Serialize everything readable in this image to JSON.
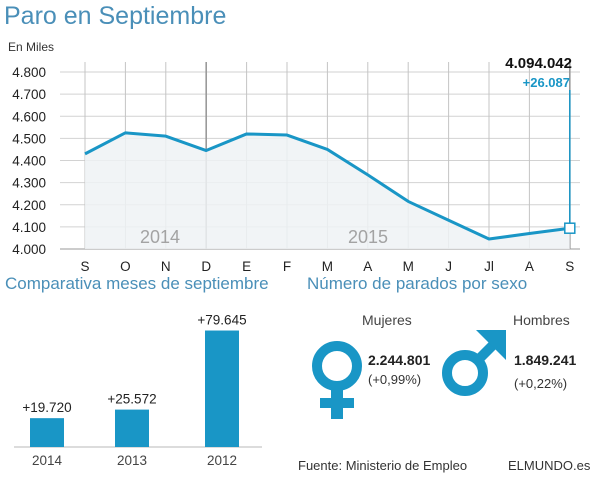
{
  "title": "Paro en Septiembre",
  "subtitles": {
    "months": "Comparativa meses de septiembre",
    "sex": "Número de parados por sexo"
  },
  "footer": {
    "source": "Fuente: Ministerio de Empleo",
    "brand": "ELMUNDO.es"
  },
  "colors": {
    "accent": "#1996c6",
    "title": "#4a8fb8",
    "area": "#eef2f5",
    "grid": "#b8b8b8"
  },
  "chart_data": [
    {
      "type": "area",
      "ylabel": "En Miles",
      "ylim": [
        4000,
        4800
      ],
      "yticks": [
        "4.000",
        "4.100",
        "4.200",
        "4.300",
        "4.400",
        "4.500",
        "4.600",
        "4.700",
        "4.800"
      ],
      "categories": [
        "S",
        "O",
        "N",
        "D",
        "E",
        "F",
        "M",
        "A",
        "M",
        "J",
        "Jl",
        "A",
        "S"
      ],
      "values": [
        4430,
        4525,
        4510,
        4445,
        4520,
        4515,
        4450,
        4335,
        4215,
        4130,
        4045,
        4070,
        4094
      ],
      "year_labels": [
        "2014",
        "2015"
      ],
      "last_value_label": "4.094.042",
      "change_label": "+26.087",
      "grid": true
    },
    {
      "type": "bar",
      "categories": [
        "2014",
        "2013",
        "2012"
      ],
      "values": [
        19720,
        25572,
        79645
      ],
      "value_labels": [
        "+19.720",
        "+25.572",
        "+79.645"
      ],
      "ylim": [
        0,
        80000
      ]
    },
    {
      "type": "table",
      "groups": [
        {
          "label": "Mujeres",
          "icon": "female-symbol-icon",
          "value": "2.244.801",
          "change": "(+0,99%)"
        },
        {
          "label": "Hombres",
          "icon": "male-symbol-icon",
          "value": "1.849.241",
          "change": "(+0,22%)"
        }
      ]
    }
  ]
}
